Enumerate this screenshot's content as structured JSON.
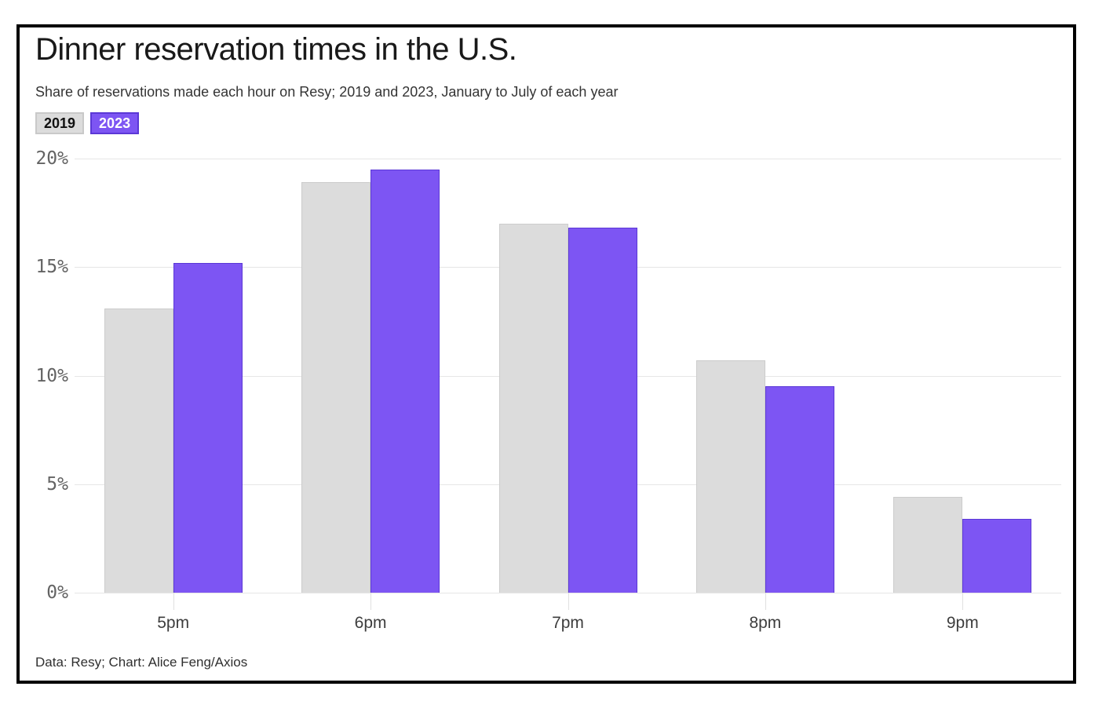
{
  "header": {
    "title": "Dinner reservation times in the U.S.",
    "subtitle": "Share of reservations made each hour on Resy; 2019 and 2023, January to July of each year"
  },
  "legend": [
    {
      "label": "2019",
      "bg": "#dcdcdc",
      "fg": "#111111",
      "border": "#c9c9c9"
    },
    {
      "label": "2023",
      "bg": "#7d55f3",
      "fg": "#ffffff",
      "border": "#5b38d6"
    }
  ],
  "chart_data": {
    "type": "bar",
    "title": "Dinner reservation times in the U.S.",
    "subtitle": "Share of reservations made each hour on Resy; 2019 and 2023, January to July of each year",
    "categories": [
      "5pm",
      "6pm",
      "7pm",
      "8pm",
      "9pm"
    ],
    "series": [
      {
        "name": "2019",
        "color": "#dcdcdc",
        "border_color": "#cccccc",
        "values": [
          13.1,
          18.9,
          17.0,
          10.7,
          4.4
        ]
      },
      {
        "name": "2023",
        "color": "#7d55f3",
        "border_color": "#5b38d6",
        "values": [
          15.2,
          19.5,
          16.8,
          9.5,
          3.4
        ]
      }
    ],
    "xlabel": "",
    "ylabel": "",
    "ylim": [
      0,
      20
    ],
    "yticks": [
      0,
      5,
      10,
      15,
      20
    ],
    "ytick_suffix": "%",
    "grid": true,
    "legend_position": "top-left"
  },
  "footer": {
    "credit": "Data: Resy; Chart: Alice Feng/Axios"
  }
}
